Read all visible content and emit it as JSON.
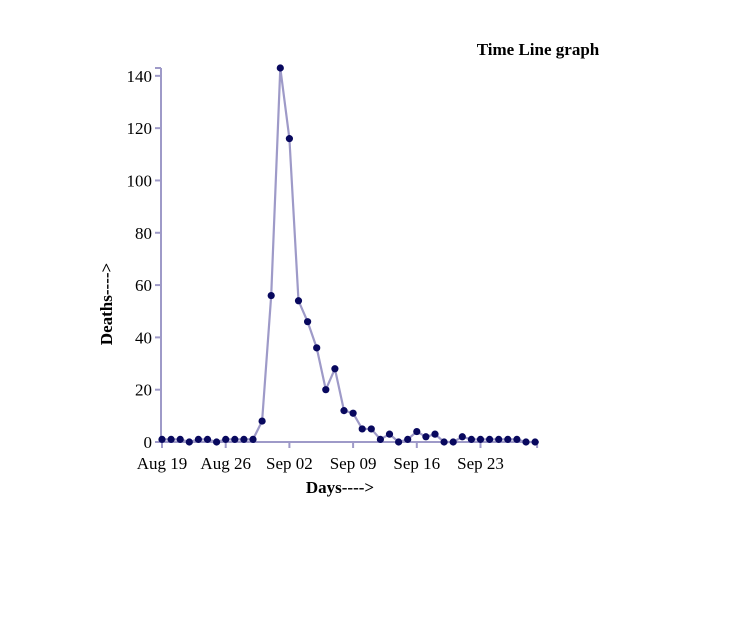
{
  "chart_data": {
    "type": "line",
    "title": "Time Line graph",
    "xlabel": "Days---->",
    "ylabel": "Deaths---->",
    "x_start": "Aug 19",
    "x": [
      "Aug 19",
      "Aug 20",
      "Aug 21",
      "Aug 22",
      "Aug 23",
      "Aug 24",
      "Aug 25",
      "Aug 26",
      "Aug 27",
      "Aug 28",
      "Aug 29",
      "Aug 30",
      "Aug 31",
      "Sep 01",
      "Sep 02",
      "Sep 03",
      "Sep 04",
      "Sep 05",
      "Sep 06",
      "Sep 07",
      "Sep 08",
      "Sep 09",
      "Sep 10",
      "Sep 11",
      "Sep 12",
      "Sep 13",
      "Sep 14",
      "Sep 15",
      "Sep 16",
      "Sep 17",
      "Sep 18",
      "Sep 19",
      "Sep 20",
      "Sep 21",
      "Sep 22",
      "Sep 23",
      "Sep 24",
      "Sep 25",
      "Sep 26",
      "Sep 27",
      "Sep 28",
      "Sep 29"
    ],
    "series": [
      {
        "values": [
          1,
          1,
          1,
          0,
          1,
          1,
          0,
          1,
          1,
          1,
          1,
          8,
          56,
          143,
          116,
          54,
          46,
          36,
          20,
          28,
          12,
          11,
          5,
          5,
          1,
          3,
          0,
          1,
          4,
          2,
          3,
          0,
          0,
          2,
          1,
          1,
          1,
          1,
          1,
          1,
          0,
          0
        ]
      }
    ],
    "x_ticks": [
      "Aug 19",
      "Aug 26",
      "Sep 02",
      "Sep 09",
      "Sep 16",
      "Sep 23"
    ],
    "y_ticks": [
      0,
      20,
      40,
      60,
      80,
      100,
      120,
      140
    ],
    "ylim": [
      0,
      143
    ],
    "grid": false,
    "line_color": "#9e9ac8",
    "marker_color": "#08085e"
  }
}
